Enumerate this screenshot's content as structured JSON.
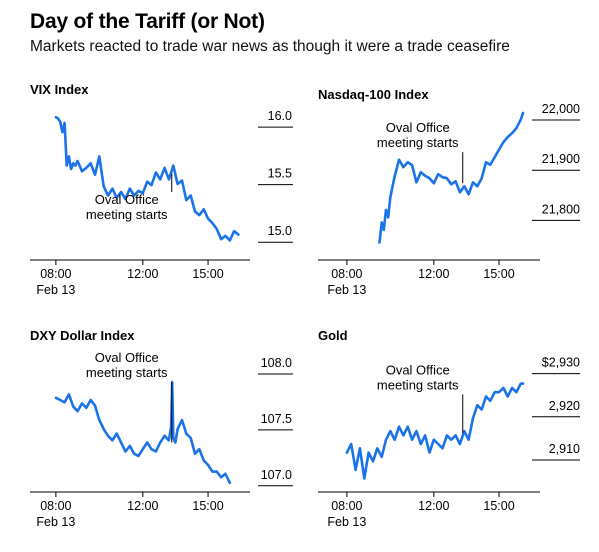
{
  "header": {
    "title": "Day of the Tariff (or Not)",
    "subtitle": "Markets reacted to trade war news as though it were a trade ceasefire"
  },
  "colors": {
    "line": "#1a73e8",
    "text": "#000000",
    "axis": "#000000"
  },
  "chart_data": [
    {
      "type": "line",
      "title": "VIX Index",
      "x_ticks": [
        "08:00",
        "12:00",
        "15:00"
      ],
      "x_tick_values": [
        8,
        12,
        15
      ],
      "x_sublabel": "Feb 13",
      "xlim": [
        7.5,
        16.7
      ],
      "ylim": [
        14.95,
        16.14
      ],
      "y_ticks": [
        {
          "value": 16.0,
          "label": "16.0"
        },
        {
          "value": 15.5,
          "label": "15.5"
        },
        {
          "value": 15.0,
          "label": "15.0"
        }
      ],
      "annotation": {
        "text": [
          "Oval Office",
          "meeting starts"
        ],
        "x": 13.33,
        "y_top": 15.57,
        "y_bottom": 15.41
      },
      "series": [
        {
          "x": [
            8.0,
            8.1,
            8.2,
            8.3,
            8.4,
            8.5,
            8.6,
            8.7,
            8.8,
            8.9,
            9.0,
            9.2,
            9.4,
            9.6,
            9.8,
            10.0,
            10.2,
            10.4,
            10.6,
            10.8,
            11.0,
            11.2,
            11.4,
            11.6,
            11.8,
            12.0,
            12.2,
            12.4,
            12.6,
            12.8,
            13.0,
            13.2,
            13.4,
            13.6,
            13.8,
            14.0,
            14.2,
            14.4,
            14.6,
            14.8,
            15.0,
            15.2,
            15.4,
            15.6,
            15.8,
            16.0,
            16.2,
            16.4
          ],
          "values": [
            16.06,
            16.05,
            16.02,
            15.93,
            16.01,
            15.64,
            15.72,
            15.61,
            15.66,
            15.64,
            15.68,
            15.59,
            15.62,
            15.66,
            15.56,
            15.72,
            15.46,
            15.38,
            15.44,
            15.36,
            15.41,
            15.35,
            15.44,
            15.38,
            15.42,
            15.4,
            15.5,
            15.47,
            15.58,
            15.52,
            15.62,
            15.52,
            15.64,
            15.48,
            15.51,
            15.34,
            15.38,
            15.24,
            15.21,
            15.26,
            15.18,
            15.14,
            15.09,
            15.0,
            15.03,
            14.99,
            15.07,
            15.04
          ]
        }
      ]
    },
    {
      "type": "line",
      "title": "Nasdaq-100 Index",
      "x_ticks": [
        "08:00",
        "12:00",
        "15:00"
      ],
      "x_tick_values": [
        8,
        12,
        15
      ],
      "x_sublabel": "Feb 13",
      "xlim": [
        7.5,
        16.7
      ],
      "ylim": [
        21745,
        22010
      ],
      "y_ticks": [
        {
          "value": 22000,
          "label": "22,000"
        },
        {
          "value": 21900,
          "label": "21,900"
        },
        {
          "value": 21800,
          "label": "21,800"
        }
      ],
      "annotation": {
        "text": [
          "Oval Office",
          "meeting starts"
        ],
        "x": 13.33,
        "y_top": 21930,
        "y_bottom": 21868
      },
      "series": [
        {
          "x": [
            9.5,
            9.6,
            9.7,
            9.8,
            9.9,
            10.0,
            10.2,
            10.4,
            10.6,
            10.8,
            11.0,
            11.2,
            11.4,
            11.6,
            11.8,
            12.0,
            12.2,
            12.4,
            12.6,
            12.8,
            13.0,
            13.2,
            13.4,
            13.6,
            13.8,
            14.0,
            14.2,
            14.4,
            14.6,
            14.8,
            15.0,
            15.2,
            15.4,
            15.6,
            15.8,
            16.0,
            16.1
          ],
          "values": [
            21750,
            21790,
            21775,
            21815,
            21800,
            21840,
            21882,
            21915,
            21900,
            21910,
            21904,
            21870,
            21890,
            21883,
            21878,
            21868,
            21886,
            21880,
            21878,
            21866,
            21872,
            21850,
            21862,
            21846,
            21870,
            21862,
            21878,
            21910,
            21905,
            21920,
            21935,
            21950,
            21960,
            21968,
            21978,
            21995,
            22008
          ]
        }
      ]
    },
    {
      "type": "line",
      "title": "DXY Dollar Index",
      "x_ticks": [
        "08:00",
        "12:00",
        "15:00"
      ],
      "x_tick_values": [
        8,
        12,
        15
      ],
      "x_sublabel": "Feb 13",
      "xlim": [
        7.5,
        16.7
      ],
      "ylim": [
        106.98,
        108.08
      ],
      "y_ticks": [
        {
          "value": 108.0,
          "label": "108.0"
        },
        {
          "value": 107.5,
          "label": "107.5"
        },
        {
          "value": 107.0,
          "label": "107.0"
        }
      ],
      "annotation": {
        "text": [
          "Oval Office",
          "meeting starts"
        ],
        "x": 13.33,
        "y_top": 107.9,
        "y_bottom": 107.36
      },
      "series": [
        {
          "x": [
            8.0,
            8.2,
            8.4,
            8.6,
            8.8,
            9.0,
            9.2,
            9.4,
            9.6,
            9.8,
            10.0,
            10.2,
            10.4,
            10.6,
            10.8,
            11.0,
            11.2,
            11.4,
            11.6,
            11.8,
            12.0,
            12.2,
            12.4,
            12.6,
            12.8,
            13.0,
            13.2,
            13.3,
            13.35,
            13.4,
            13.5,
            13.6,
            13.8,
            14.0,
            14.2,
            14.4,
            14.6,
            14.8,
            15.0,
            15.2,
            15.4,
            15.6,
            15.8,
            16.0
          ],
          "values": [
            107.76,
            107.74,
            107.72,
            107.79,
            107.68,
            107.64,
            107.71,
            107.67,
            107.74,
            107.69,
            107.56,
            107.48,
            107.42,
            107.38,
            107.44,
            107.36,
            107.28,
            107.33,
            107.26,
            107.24,
            107.3,
            107.36,
            107.3,
            107.28,
            107.36,
            107.42,
            107.38,
            107.5,
            107.9,
            107.4,
            107.36,
            107.48,
            107.56,
            107.44,
            107.4,
            107.26,
            107.3,
            107.2,
            107.16,
            107.1,
            107.1,
            107.05,
            107.08,
            107.0
          ]
        }
      ]
    },
    {
      "type": "line",
      "title": "Gold",
      "x_ticks": [
        "08:00",
        "12:00",
        "15:00"
      ],
      "x_tick_values": [
        8,
        12,
        15
      ],
      "x_sublabel": "Feb 13",
      "xlim": [
        7.5,
        16.7
      ],
      "ylim": [
        2903.5,
        2932
      ],
      "y_ticks": [
        {
          "value": 2930,
          "label": "$2,930"
        },
        {
          "value": 2920,
          "label": "2,920"
        },
        {
          "value": 2910,
          "label": "2,910"
        }
      ],
      "annotation": {
        "text": [
          "Oval Office",
          "meeting starts"
        ],
        "x": 13.33,
        "y_top": 2924.5,
        "y_bottom": 2915.5
      },
      "series": [
        {
          "x": [
            8.0,
            8.2,
            8.4,
            8.6,
            8.8,
            9.0,
            9.2,
            9.4,
            9.6,
            9.8,
            10.0,
            10.2,
            10.4,
            10.6,
            10.8,
            11.0,
            11.2,
            11.4,
            11.6,
            11.8,
            12.0,
            12.2,
            12.4,
            12.6,
            12.8,
            13.0,
            13.2,
            13.4,
            13.6,
            13.8,
            14.0,
            14.2,
            14.4,
            14.6,
            14.8,
            15.0,
            15.2,
            15.4,
            15.6,
            15.8,
            16.0,
            16.1
          ],
          "values": [
            2911,
            2913,
            2907,
            2912,
            2905,
            2911,
            2909,
            2912,
            2910,
            2914,
            2916,
            2914,
            2917,
            2915,
            2917,
            2914,
            2916,
            2913,
            2915,
            2911,
            2914,
            2913,
            2912,
            2915,
            2914,
            2915,
            2913,
            2916,
            2914,
            2919,
            2922,
            2921,
            2924,
            2923,
            2925,
            2925,
            2926,
            2924,
            2926,
            2925,
            2927,
            2927
          ]
        }
      ]
    }
  ]
}
